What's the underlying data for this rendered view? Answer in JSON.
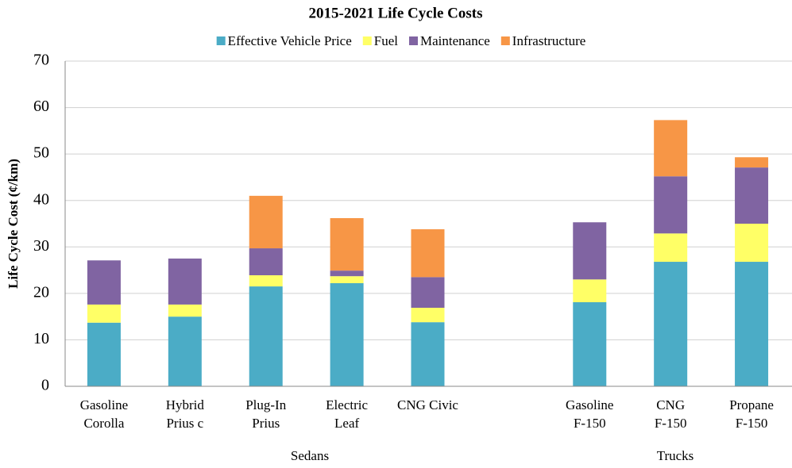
{
  "chart_data": {
    "type": "stacked_bar",
    "title": "2015-2021 Life Cycle Costs",
    "y_label": "Life Cycle Cost (¢/km)",
    "categories": [
      "Gasoline\nCorolla",
      "Hybrid\nPrius c",
      "Plug-In\nPrius",
      "Electric\nLeaf",
      "CNG Civic",
      null,
      "Gasoline\nF-150",
      "CNG\nF-150",
      "Propane\nF-150"
    ],
    "group_labels": [
      "Sedans",
      "Trucks"
    ],
    "series": [
      {
        "name": "Effective Vehicle Price",
        "color": "#4bacc6",
        "values": [
          13.7,
          15.0,
          21.5,
          22.2,
          13.8,
          null,
          18.1,
          26.8,
          26.8
        ]
      },
      {
        "name": "Fuel",
        "color": "#ffff66",
        "values": [
          3.9,
          2.6,
          2.4,
          1.5,
          3.1,
          null,
          4.9,
          6.1,
          8.2
        ]
      },
      {
        "name": "Maintenance",
        "color": "#8064a2",
        "values": [
          9.5,
          9.9,
          5.8,
          1.2,
          6.6,
          null,
          12.3,
          12.3,
          12.1
        ]
      },
      {
        "name": "Infrastructure",
        "color": "#f79646",
        "values": [
          0,
          0,
          11.3,
          11.3,
          10.3,
          null,
          0,
          12.1,
          2.2
        ]
      }
    ],
    "ylim": [
      0,
      70
    ],
    "yticks": [
      0,
      10,
      20,
      30,
      40,
      50,
      60,
      70
    ],
    "grid": true,
    "legend": "top"
  }
}
